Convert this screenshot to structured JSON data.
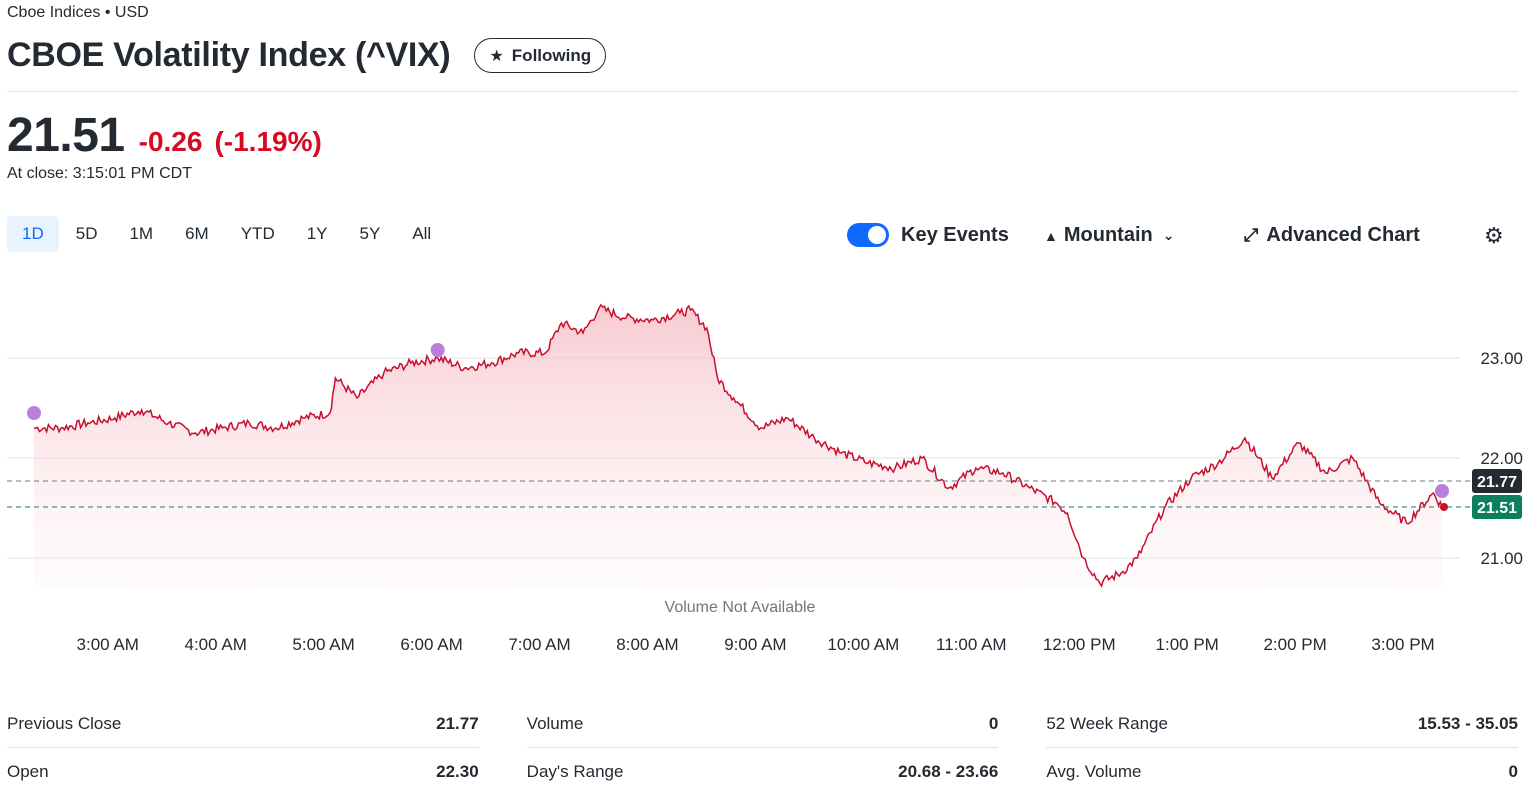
{
  "header": {
    "exchange": "Cboe Indices • USD",
    "title": "CBOE Volatility Index (^VIX)",
    "follow_icon": "star-icon",
    "follow_label": "Following"
  },
  "quote": {
    "price": "21.51",
    "change": "-0.26",
    "change_pct": "(-1.19%)",
    "close_time": "At close: 3:15:01 PM CDT",
    "colors": {
      "down": "#d60a22",
      "accent": "#0f69ff"
    }
  },
  "ranges": [
    {
      "label": "1D",
      "active": true
    },
    {
      "label": "5D"
    },
    {
      "label": "1M"
    },
    {
      "label": "6M"
    },
    {
      "label": "YTD"
    },
    {
      "label": "1Y"
    },
    {
      "label": "5Y"
    },
    {
      "label": "All"
    }
  ],
  "controls": {
    "key_events": "Key Events",
    "chart_type": "Mountain",
    "advanced": "Advanced Chart",
    "icons": [
      "toggle-icon",
      "mountain-icon",
      "chevron-down-icon",
      "expand-icon",
      "gear-icon"
    ]
  },
  "chart_data": {
    "type": "area",
    "x_ticks": [
      "3:00 AM",
      "4:00 AM",
      "5:00 AM",
      "6:00 AM",
      "7:00 AM",
      "8:00 AM",
      "9:00 AM",
      "10:00 AM",
      "11:00 AM",
      "12:00 PM",
      "1:00 PM",
      "2:00 PM",
      "3:00 PM"
    ],
    "y_ticks": [
      "23.00",
      "22.00",
      "21.00"
    ],
    "ylim": [
      20.5,
      23.98
    ],
    "x_range_hours": [
      2.25,
      15.33
    ],
    "series": [
      {
        "x": [
          2.25,
          2.5,
          2.75,
          3.0,
          3.25,
          3.5,
          3.75,
          4.0,
          4.25,
          4.5,
          4.75,
          5.0,
          5.05,
          5.25,
          5.5,
          5.75,
          6.0,
          6.25,
          6.5,
          6.75,
          7.0,
          7.15,
          7.35,
          7.5,
          7.75,
          8.0,
          8.25,
          8.35,
          8.5,
          8.6,
          8.75,
          9.0,
          9.25,
          9.5,
          9.75,
          10.0,
          10.25,
          10.5,
          10.75,
          11.0,
          11.25,
          11.5,
          11.75,
          11.85,
          12.0,
          12.15,
          12.35,
          12.5,
          12.75,
          13.0,
          13.25,
          13.5,
          13.75,
          14.0,
          14.25,
          14.5,
          14.75,
          15.0,
          15.25,
          15.33
        ],
        "y": [
          22.3,
          22.3,
          22.35,
          22.4,
          22.48,
          22.35,
          22.25,
          22.3,
          22.35,
          22.3,
          22.4,
          22.45,
          22.8,
          22.6,
          22.85,
          22.95,
          23.0,
          22.9,
          22.95,
          23.05,
          23.05,
          23.35,
          23.25,
          23.5,
          23.4,
          23.38,
          23.45,
          23.48,
          23.3,
          22.8,
          22.6,
          22.3,
          22.4,
          22.2,
          22.05,
          21.95,
          21.9,
          22.0,
          21.7,
          21.9,
          21.85,
          21.7,
          21.55,
          21.45,
          21.0,
          20.75,
          20.85,
          21.0,
          21.5,
          21.8,
          21.95,
          22.2,
          21.8,
          22.15,
          21.85,
          22.0,
          21.55,
          21.35,
          21.65,
          21.51
        ]
      }
    ],
    "reference_lines": [
      {
        "label": "21.77",
        "value": 21.77
      },
      {
        "label": "21.51",
        "value": 21.51
      }
    ],
    "annotation": "Volume Not Available",
    "event_markers": [
      {
        "x": 2.25,
        "y": 22.45
      },
      {
        "x": 6.0,
        "y": 23.08
      },
      {
        "x": 15.33,
        "y": 21.67
      }
    ],
    "colors": {
      "line": "#c8102e",
      "fill": "#f9d7dc",
      "marker": "#b97fdd",
      "prev_close_tag": "#232a31",
      "current_tag": "#0c7f5d"
    }
  },
  "stats": {
    "col1": [
      {
        "label": "Previous Close",
        "value": "21.77"
      },
      {
        "label": "Open",
        "value": "22.30"
      }
    ],
    "col2": [
      {
        "label": "Volume",
        "value": "0"
      },
      {
        "label": "Day's Range",
        "value": "20.68 - 23.66"
      }
    ],
    "col3": [
      {
        "label": "52 Week Range",
        "value": "15.53 - 35.05"
      },
      {
        "label": "Avg. Volume",
        "value": "0"
      }
    ]
  }
}
